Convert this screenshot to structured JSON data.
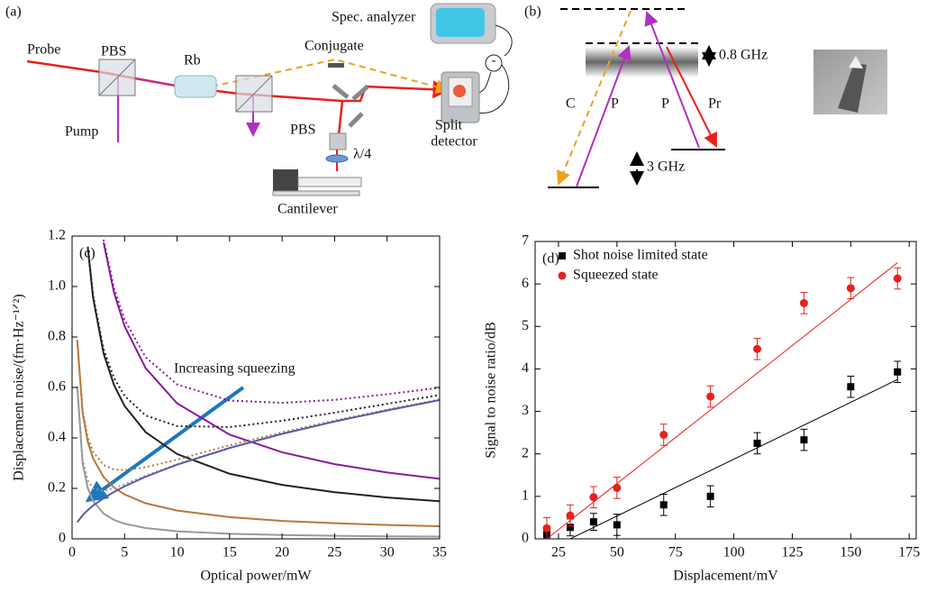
{
  "panels": {
    "a": {
      "label": "(a)",
      "probe": "Probe",
      "pbs_1": "PBS",
      "rb": "Rb",
      "conjugate": "Conjugate",
      "spec_analyzer": "Spec. analyzer",
      "minus": "-",
      "pump": "Pump",
      "pbs_2": "PBS",
      "quarter_wave": "λ/4",
      "split_detector": [
        "Split",
        "detector"
      ],
      "cantilever": "Cantilever"
    },
    "b": {
      "label": "(b)",
      "detuning": "0.8 GHz",
      "splitting": "3 GHz",
      "conjugate": "C",
      "probe_1": "P",
      "probe_2": "P",
      "pr": "Pr"
    }
  },
  "chart_data": [
    {
      "type": "line",
      "panel_label": "(c)",
      "xlabel": "Optical power/mW",
      "ylabel": "Displacement noise/(fm·Hz⁻¹ᐟ²)",
      "annotation": "Increasing squeezing",
      "xlim": [
        0,
        35
      ],
      "ylim": [
        0,
        1.2
      ],
      "xticks": [
        0,
        5,
        10,
        15,
        20,
        25,
        30,
        35
      ],
      "yticks": [
        0,
        0.2,
        0.4,
        0.6,
        0.8,
        {
          "value": 1,
          "label": "1.0"
        },
        1.2
      ],
      "x": [
        0.5,
        1,
        1.5,
        2,
        3,
        4,
        5,
        7,
        10,
        15,
        20,
        25,
        30,
        35
      ],
      "series": [
        {
          "color": "#8a1a9b",
          "style": "solid",
          "values": [
            null,
            null,
            null,
            null,
            1.175,
            0.975,
            0.843,
            0.677,
            0.537,
            0.413,
            0.343,
            0.296,
            0.263,
            0.238
          ]
        },
        {
          "color": "#8a1a9b",
          "style": "dotted",
          "values": [
            null,
            null,
            null,
            null,
            1.186,
            0.993,
            0.868,
            0.72,
            0.612,
            0.548,
            0.539,
            0.551,
            0.573,
            0.599
          ]
        },
        {
          "color": "#222222",
          "style": "solid",
          "values": [
            null,
            null,
            1.153,
            0.956,
            0.735,
            0.609,
            0.527,
            0.423,
            0.336,
            0.258,
            0.214,
            0.185,
            0.164,
            0.149
          ]
        },
        {
          "color": "#222222",
          "style": "dotted",
          "values": [
            null,
            null,
            1.158,
            0.965,
            0.752,
            0.637,
            0.567,
            0.489,
            0.447,
            0.443,
            0.468,
            0.5,
            0.535,
            0.57
          ]
        },
        {
          "color": "#b8783c",
          "style": "solid",
          "values": [
            0.785,
            0.5,
            0.384,
            0.319,
            0.245,
            0.203,
            0.176,
            0.141,
            0.112,
            0.086,
            0.071,
            0.062,
            0.055,
            0.05
          ]
        },
        {
          "color": "#b8783c",
          "style": "dotted",
          "values": [
            0.788,
            0.509,
            0.4,
            0.345,
            0.293,
            0.275,
            0.272,
            0.284,
            0.314,
            0.371,
            0.422,
            0.469,
            0.512,
            0.552
          ]
        },
        {
          "color": "#999999",
          "style": "solid",
          "values": [
            0.6,
            0.3,
            0.2,
            0.15,
            0.1,
            0.075,
            0.06,
            0.043,
            0.03,
            0.02,
            0.015,
            0.012,
            0.01,
            0.009
          ]
        },
        {
          "color": "#999999",
          "style": "dotted",
          "values": [
            0.604,
            0.314,
            0.231,
            0.2,
            0.19,
            0.201,
            0.216,
            0.25,
            0.296,
            0.361,
            0.416,
            0.465,
            0.509,
            0.55
          ]
        },
        {
          "color": "#5a5aa8",
          "style": "solid",
          "values": [
            0.066,
            0.093,
            0.114,
            0.132,
            0.161,
            0.186,
            0.208,
            0.246,
            0.294,
            0.36,
            0.416,
            0.465,
            0.509,
            0.55
          ]
        }
      ]
    },
    {
      "type": "scatter",
      "panel_label": "(d)",
      "xlabel": "Displacement/mV",
      "ylabel": "Signal to noise ratio/dB",
      "xlim": [
        15,
        178
      ],
      "ylim": [
        0,
        7
      ],
      "xticks": [
        25,
        50,
        75,
        100,
        125,
        150,
        175
      ],
      "yticks": [
        0,
        1,
        2,
        3,
        4,
        5,
        6,
        7
      ],
      "legend": "upper left",
      "series": [
        {
          "name": "Shot noise limited state",
          "color": "#000000",
          "marker": "square",
          "x": [
            20,
            30,
            40,
            50,
            70,
            90,
            110,
            130,
            150,
            170
          ],
          "values": [
            0.1,
            0.27,
            0.4,
            0.33,
            0.8,
            1.0,
            2.25,
            2.33,
            3.58,
            3.93
          ],
          "errors": [
            0.1,
            0.2,
            0.2,
            0.25,
            0.25,
            0.25,
            0.25,
            0.25,
            0.25,
            0.25
          ],
          "fit": {
            "x": [
              30,
              170
            ],
            "values": [
              0,
              3.75
            ]
          }
        },
        {
          "name": "Squeezed state",
          "color": "#e8201c",
          "marker": "circle",
          "x": [
            20,
            30,
            40,
            50,
            70,
            90,
            110,
            130,
            150,
            170
          ],
          "values": [
            0.25,
            0.55,
            0.98,
            1.2,
            2.45,
            3.35,
            4.47,
            5.55,
            5.9,
            6.13
          ],
          "errors": [
            0.25,
            0.25,
            0.25,
            0.25,
            0.25,
            0.25,
            0.25,
            0.25,
            0.25,
            0.25
          ],
          "fit": {
            "x": [
              20,
              170
            ],
            "values": [
              0,
              6.5
            ]
          }
        }
      ]
    }
  ]
}
